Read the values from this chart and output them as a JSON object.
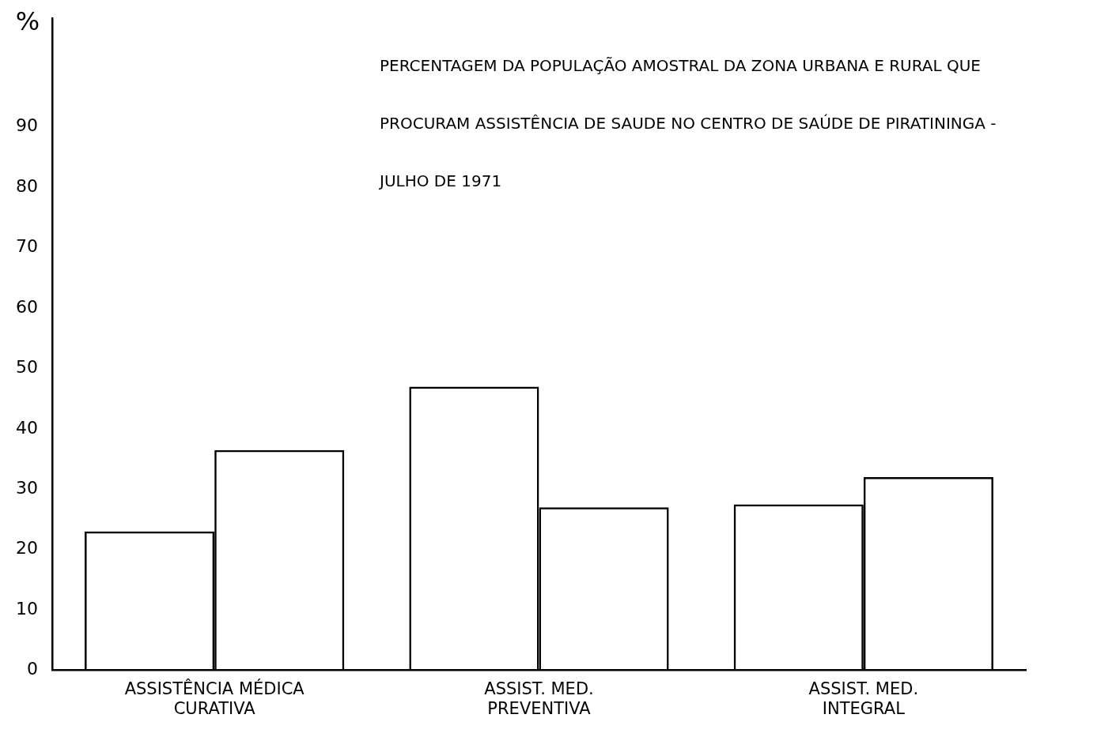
{
  "chart_data": {
    "type": "bar",
    "title": "PERCENTAGEM DA POPULAÇÃO AMOSTRAL DA ZONA URBANA E RURAL QUE PROCURAM ASSISTÊNCIA DE SAUDE NO CENTRO DE SAÚDE DE PIRATININGA - JULHO DE 1971",
    "ylabel": "%",
    "categories": [
      "ASSISTÊNCIA MÉDICA\nCURATIVA",
      "ASSIST. MED.\nPREVENTIVA",
      "ASSIST. MED.\nINTEGRAL"
    ],
    "series": [
      {
        "color": "#000000",
        "values": [
          23,
          47,
          27.5
        ]
      },
      {
        "color": "#000000",
        "values": [
          36.5,
          27,
          32
        ]
      }
    ],
    "ylim": [
      0,
      108
    ],
    "yticks": [
      0,
      10,
      20,
      30,
      40,
      50,
      60,
      70,
      80,
      90
    ],
    "grid": false,
    "legend": false
  }
}
